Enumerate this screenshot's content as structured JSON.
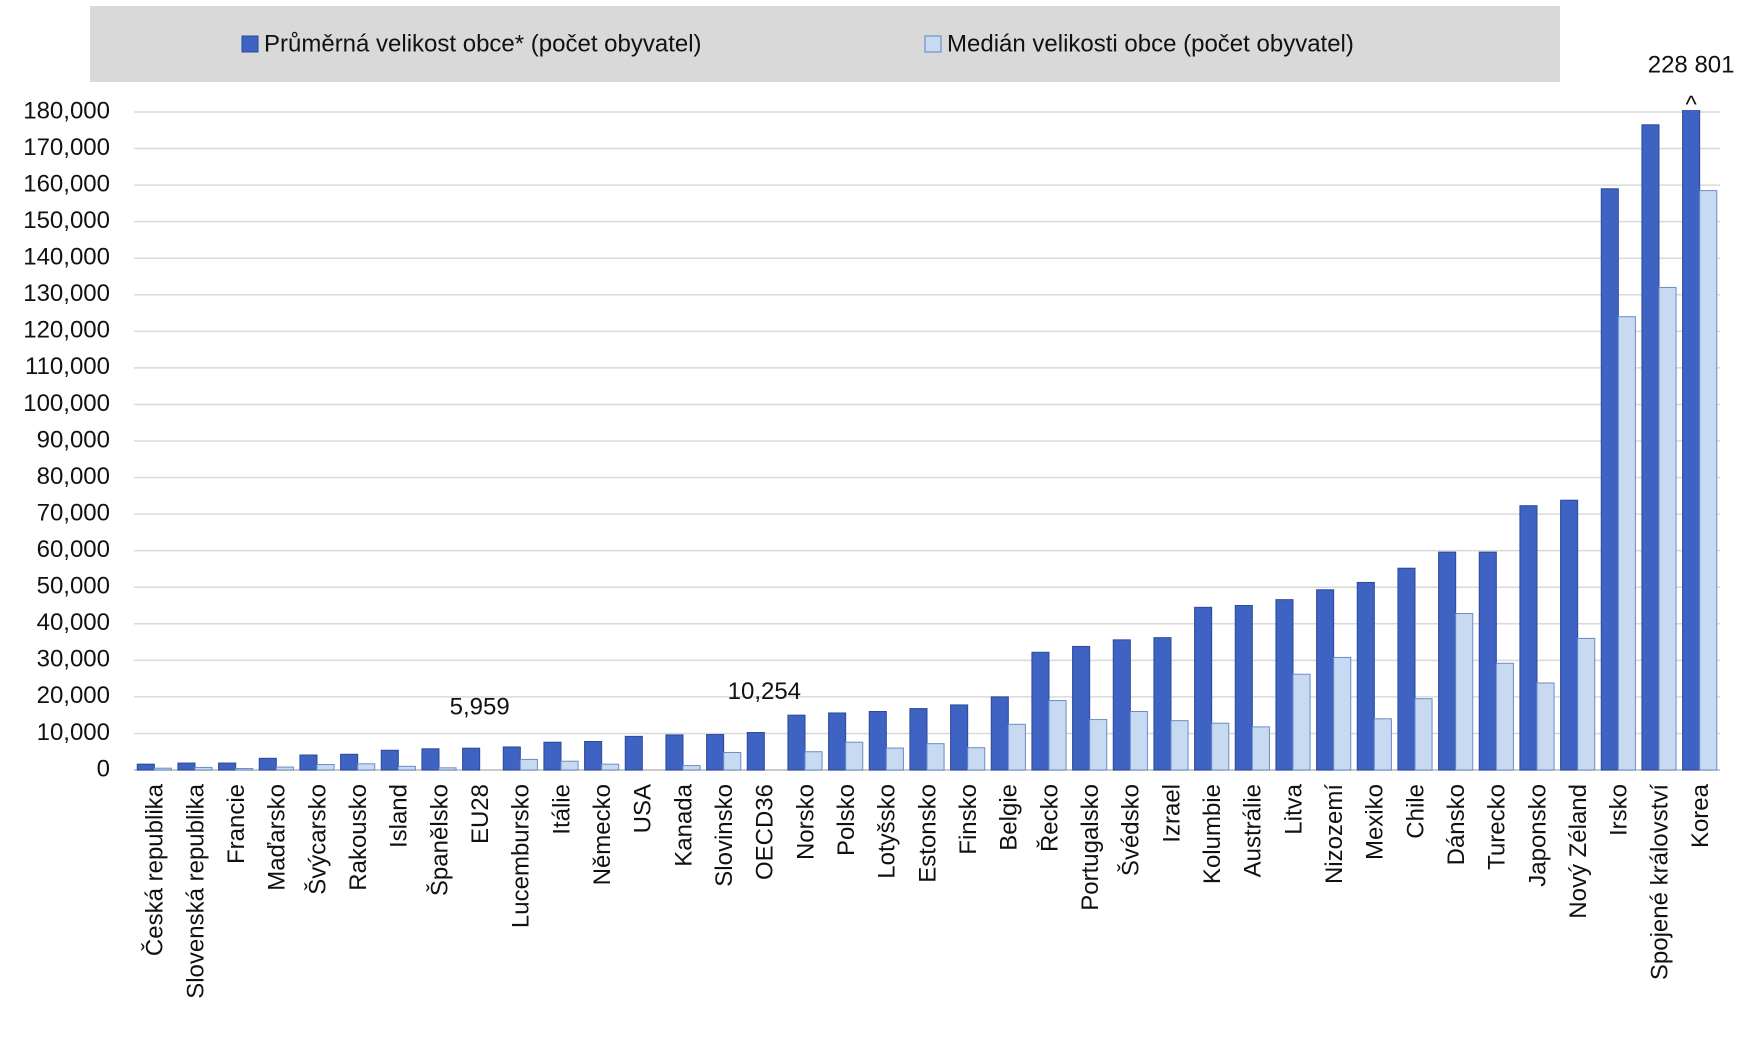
{
  "chart_data": {
    "type": "bar",
    "categories": [
      "Česká republika",
      "Slovenská republika",
      "Francie",
      "Maďarsko",
      "Švýcarsko",
      "Rakousko",
      "Island",
      "Španělsko",
      "EU28",
      "Lucembursko",
      "Itálie",
      "Německo",
      "USA",
      "Kanada",
      "Slovinsko",
      "OECD36",
      "Norsko",
      "Polsko",
      "Lotyšsko",
      "Estonsko",
      "Finsko",
      "Belgie",
      "Řecko",
      "Portugalsko",
      "Švédsko",
      "Izrael",
      "Kolumbie",
      "Austrálie",
      "Litva",
      "Nizozemí",
      "Mexiko",
      "Chile",
      "Dánsko",
      "Turecko",
      "Japonsko",
      "Nový Zéland",
      "Irsko",
      "Spojené království",
      "Korea"
    ],
    "series": [
      {
        "name": "Průměrná velikost obce* (počet obyvatel)",
        "color": "#3f63c2",
        "values": [
          1600,
          1900,
          1900,
          3200,
          4100,
          4300,
          5400,
          5800,
          5959,
          6300,
          7600,
          7800,
          9200,
          9600,
          9700,
          10254,
          15000,
          15600,
          16000,
          16800,
          17800,
          20000,
          32200,
          33800,
          35600,
          36200,
          44500,
          45000,
          46600,
          49300,
          51300,
          55200,
          59600,
          59600,
          72300,
          73800,
          159000,
          176500,
          228801
        ],
        "value_labels": [
          null,
          null,
          null,
          null,
          null,
          null,
          null,
          null,
          "5,959",
          null,
          null,
          null,
          null,
          null,
          null,
          "10,254",
          null,
          null,
          null,
          null,
          null,
          null,
          null,
          null,
          null,
          null,
          null,
          null,
          null,
          null,
          null,
          null,
          null,
          null,
          null,
          null,
          null,
          null,
          "228 801"
        ]
      },
      {
        "name": "Medián velikosti obce (počet obyvatel)",
        "color": "#c8daf1",
        "values": [
          500,
          700,
          400,
          800,
          1500,
          1700,
          1000,
          600,
          null,
          2900,
          2400,
          1600,
          null,
          1200,
          4800,
          null,
          5000,
          7600,
          6000,
          7200,
          6100,
          12500,
          19000,
          13800,
          16000,
          13500,
          12800,
          11800,
          26200,
          30800,
          14000,
          19500,
          42800,
          29200,
          23800,
          36000,
          124000,
          132000,
          158500
        ]
      }
    ],
    "break_marker": "^",
    "ylim": [
      0,
      180000
    ],
    "yticks": [
      0,
      {
        "value": 10000,
        "label": "10,000"
      },
      {
        "value": 20000,
        "label": "20,000"
      },
      {
        "value": 30000,
        "label": "30,000"
      },
      {
        "value": 40000,
        "label": "40,000"
      },
      {
        "value": 50000,
        "label": "50,000"
      },
      {
        "value": 60000,
        "label": "60,000"
      },
      {
        "value": 70000,
        "label": "70,000"
      },
      {
        "value": 80000,
        "label": "80,000"
      },
      {
        "value": 90000,
        "label": "90,000"
      },
      {
        "value": 100000,
        "label": "100,000"
      },
      {
        "value": 110000,
        "label": "110,000"
      },
      {
        "value": 120000,
        "label": "120,000"
      },
      {
        "value": 130000,
        "label": "130,000"
      },
      {
        "value": 140000,
        "label": "140,000"
      },
      {
        "value": 150000,
        "label": "150,000"
      },
      {
        "value": 160000,
        "label": "160,000"
      },
      {
        "value": 170000,
        "label": "170,000"
      },
      {
        "value": 180000,
        "label": "180,000"
      }
    ],
    "grid": true,
    "legend": "top"
  }
}
